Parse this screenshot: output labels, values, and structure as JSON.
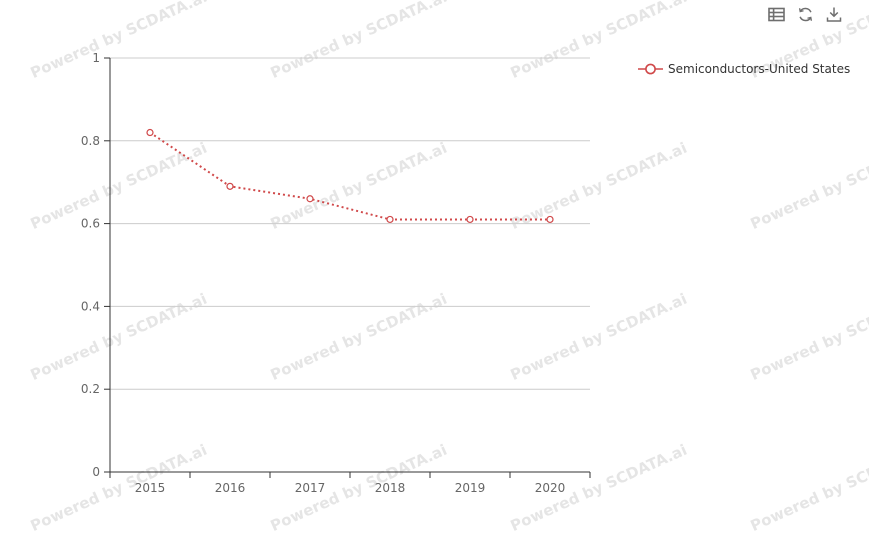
{
  "watermark": {
    "text": "Powered by SCDATA.ai"
  },
  "toolbar": {
    "buttons": [
      {
        "name": "view-data",
        "title": "Data View"
      },
      {
        "name": "refresh",
        "title": "Refresh"
      },
      {
        "name": "download",
        "title": "Download"
      }
    ]
  },
  "legend": {
    "label": "Semiconductors-United States",
    "marker_color": "#d0494a"
  },
  "colors": {
    "series": "#d0494a",
    "gridline": "#cccccc",
    "axis_line": "#333333",
    "axis_label": "#666666",
    "icon": "#6e6e6e"
  },
  "chart_data": {
    "type": "line",
    "line_style": "dotted",
    "marker": "hollow-circle",
    "categories": [
      "2015",
      "2016",
      "2017",
      "2018",
      "2019",
      "2020"
    ],
    "series": [
      {
        "name": "Semiconductors-United States",
        "color": "#d0494a",
        "values": [
          0.82,
          0.69,
          0.66,
          0.61,
          0.61,
          0.61
        ]
      }
    ],
    "title": "",
    "xlabel": "",
    "ylabel": "",
    "ylim": [
      0,
      1
    ],
    "y_ticks": [
      0,
      0.2,
      0.4,
      0.6,
      0.8,
      1
    ],
    "grid": true,
    "legend_position": "right"
  }
}
